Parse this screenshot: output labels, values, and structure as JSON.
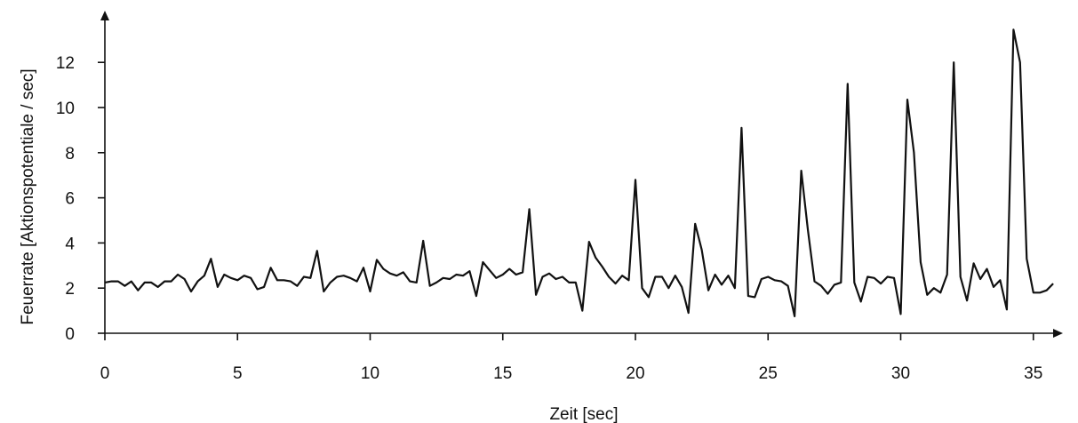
{
  "chart_data": {
    "type": "line",
    "title": "",
    "xlabel": "Zeit [sec]",
    "ylabel": "Feuerrate [Aktionspotentiale / sec]",
    "xlim": [
      0,
      36
    ],
    "ylim": [
      0,
      14
    ],
    "xticks": [
      0,
      5,
      10,
      15,
      20,
      25,
      30,
      35
    ],
    "yticks": [
      0,
      2,
      4,
      6,
      8,
      10,
      12
    ],
    "grid": false,
    "legend": "none",
    "line_color": "#111111",
    "series": [
      {
        "x": [
          0,
          0.25,
          0.5,
          0.75,
          1,
          1.25,
          1.5,
          1.75,
          2,
          2.25,
          2.5,
          2.75,
          3,
          3.25,
          3.5,
          3.75,
          4,
          4.25,
          4.5,
          4.75,
          5,
          5.25,
          5.5,
          5.75,
          6,
          6.25,
          6.5,
          6.75,
          7,
          7.25,
          7.5,
          7.75,
          8,
          8.25,
          8.5,
          8.75,
          9,
          9.25,
          9.5,
          9.75,
          10,
          10.25,
          10.5,
          10.75,
          11,
          11.25,
          11.5,
          11.75,
          12,
          12.25,
          12.5,
          12.75,
          13,
          13.25,
          13.5,
          13.75,
          14,
          14.25,
          14.5,
          14.75,
          15,
          15.25,
          15.5,
          15.75,
          16,
          16.25,
          16.5,
          16.75,
          17,
          17.25,
          17.5,
          17.75,
          18,
          18.25,
          18.5,
          18.75,
          19,
          19.25,
          19.5,
          19.75,
          20,
          20.25,
          20.5,
          20.75,
          21,
          21.25,
          21.5,
          21.75,
          22,
          22.25,
          22.5,
          22.75,
          23,
          23.25,
          23.5,
          23.75,
          24,
          24.25,
          24.5,
          24.75,
          25,
          25.25,
          25.5,
          25.75,
          26,
          26.25,
          26.5,
          26.75,
          27,
          27.25,
          27.5,
          27.75,
          28,
          28.25,
          28.5,
          28.75,
          29,
          29.25,
          29.5,
          29.75,
          30,
          30.25,
          30.5,
          30.75,
          31,
          31.25,
          31.5,
          31.75,
          32,
          32.25,
          32.5,
          32.75,
          33,
          33.25,
          33.5,
          33.75,
          34,
          34.25,
          34.5,
          34.75,
          35,
          35.25,
          35.5,
          35.75
        ],
        "y": [
          2.25,
          2.3,
          2.3,
          2.1,
          2.3,
          1.9,
          2.25,
          2.25,
          2.05,
          2.3,
          2.3,
          2.6,
          2.4,
          1.85,
          2.3,
          2.55,
          3.3,
          2.05,
          2.6,
          2.45,
          2.35,
          2.55,
          2.45,
          1.95,
          2.05,
          2.9,
          2.35,
          2.35,
          2.3,
          2.1,
          2.5,
          2.45,
          3.65,
          1.85,
          2.25,
          2.5,
          2.55,
          2.45,
          2.3,
          2.9,
          1.85,
          3.25,
          2.85,
          2.65,
          2.55,
          2.7,
          2.3,
          2.25,
          4.1,
          2.1,
          2.25,
          2.45,
          2.4,
          2.6,
          2.55,
          2.75,
          1.65,
          3.15,
          2.8,
          2.45,
          2.6,
          2.85,
          2.6,
          2.7,
          5.5,
          1.7,
          2.5,
          2.65,
          2.4,
          2.5,
          2.25,
          2.25,
          1.0,
          4.05,
          3.35,
          2.95,
          2.5,
          2.2,
          2.55,
          2.35,
          6.8,
          2.0,
          1.6,
          2.5,
          2.5,
          2.0,
          2.55,
          2.05,
          0.9,
          4.85,
          3.7,
          1.9,
          2.6,
          2.15,
          2.55,
          2.0,
          9.1,
          1.65,
          1.6,
          2.4,
          2.5,
          2.35,
          2.3,
          2.1,
          0.75,
          7.2,
          4.6,
          2.3,
          2.1,
          1.75,
          2.15,
          2.25,
          11.05,
          2.25,
          1.4,
          2.5,
          2.45,
          2.2,
          2.5,
          2.45,
          0.85,
          10.35,
          8.0,
          3.15,
          1.7,
          2.0,
          1.8,
          2.6,
          12.0,
          2.5,
          1.45,
          3.1,
          2.4,
          2.85,
          2.05,
          2.35,
          1.05,
          13.45,
          12.0,
          3.3,
          1.8,
          1.8,
          1.9,
          2.2
        ]
      }
    ]
  }
}
